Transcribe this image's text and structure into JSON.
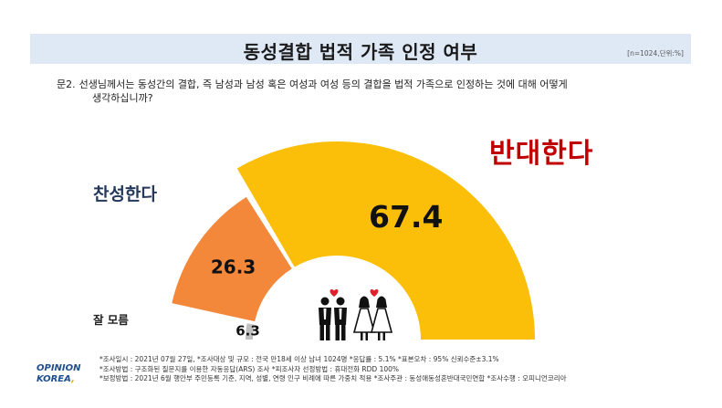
{
  "title": "동성결합 법적 가족 인정 여부",
  "sample_info": "[n=1024,단위:%]",
  "question": {
    "label": "문2.",
    "line1": "선생님께서는 동성간의 결합, 즉 남성과 남성 혹은 여성과 여성 등의 결합을 법적 가족으로 인정하는 것에 대해 어떻게",
    "line2": "생각하십니까?"
  },
  "chart_data": {
    "type": "pie",
    "style": "half-donut",
    "title": "동성결합 법적 가족 인정 여부",
    "unit": "%",
    "slices": [
      {
        "label": "잘 모름",
        "value": 6.3,
        "color": "#c0c0c0"
      },
      {
        "label": "찬성한다",
        "value": 26.3,
        "color": "#f4883a"
      },
      {
        "label": "반대한다",
        "value": 67.4,
        "color": "#fbbf09"
      }
    ],
    "value_labels": [
      "6.3",
      "26.3",
      "67.4"
    ],
    "category_labels": [
      "잘 모름",
      "찬성한다",
      "반대한다"
    ]
  },
  "notes": [
    "*조사일시 : 2021년 07월 27일,  *조사대상 및 규모 : 전국 만18세 이상 남녀 1024명 *응답률 : 5.1%   *표본오차 : 95% 신뢰수준±3.1%",
    "*조사방법 : 구조화된 질문지를 이용한 자동응답(ARS) 조사  *피조사자 선정방법 : 휴대전화 RDD 100%",
    "*보정방법 : 2021년 6월 행안부 주민등록 기준, 지역, 성별, 연령 인구 비례에 따른 가중치 적용  *조사주관 : 동성애동성혼반대국민연합 *조사수행 : 오피니언코리아"
  ],
  "logo": {
    "line1": "OPINION",
    "line2": "KOREA"
  }
}
